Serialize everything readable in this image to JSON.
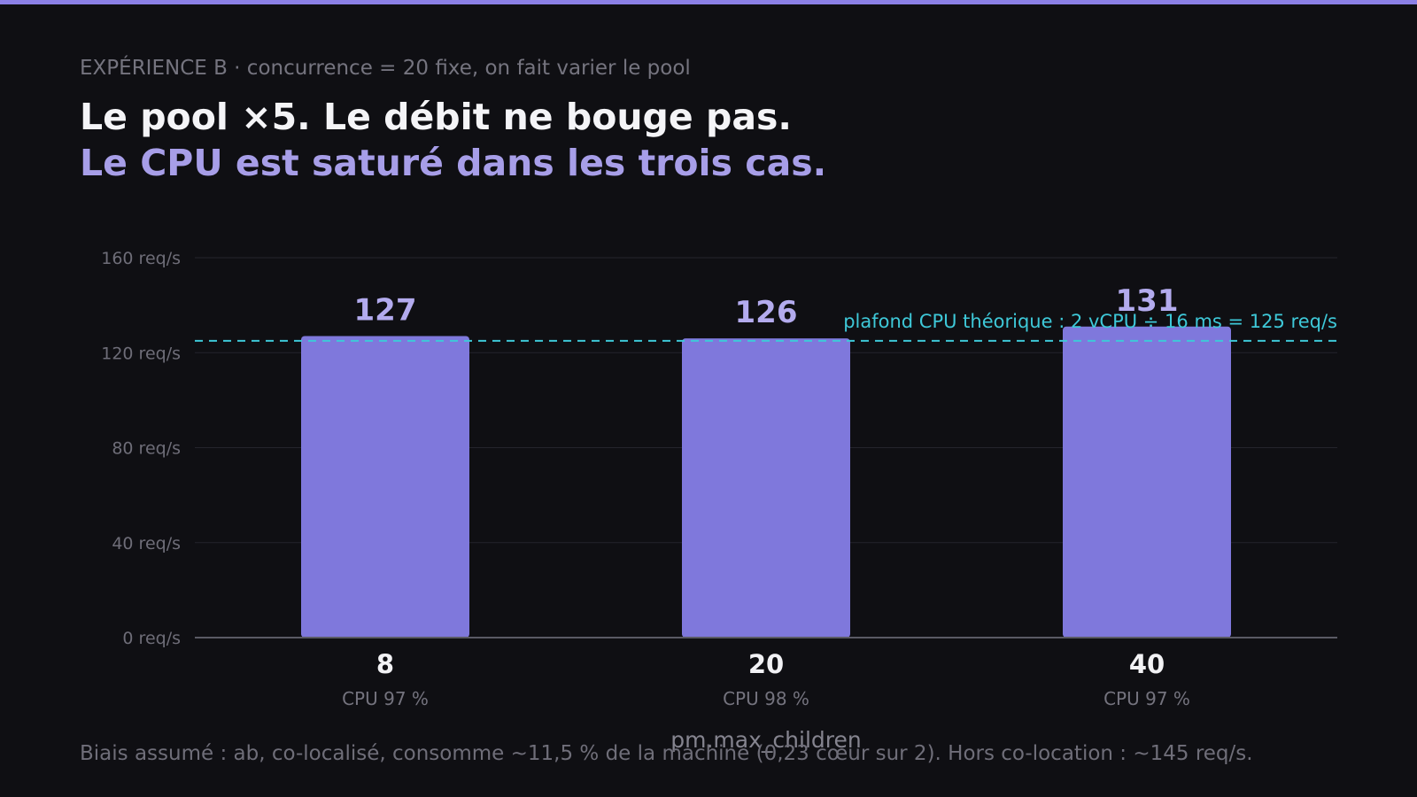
{
  "eyebrow": "EXPÉRIENCE B · concurrence = 20 fixe, on fait varier le pool",
  "title_line1": "Le pool ×5. Le débit ne bouge pas.",
  "title_line2": "Le CPU est saturé dans les trois cas.",
  "footnote": "Biais assumé : ab, co-localisé, consomme ~11,5 % de la machine (0,23 cœur sur 2). Hors co-location : ~145 req/s.",
  "colors": {
    "bar": "#7f78dc",
    "value_label": "#b3abee",
    "threshold": "#3ec8d8",
    "accent_bar": "#8b80e6"
  },
  "chart_data": {
    "type": "bar",
    "xlabel": "pm.max_children",
    "categories": [
      "8",
      "20",
      "40"
    ],
    "sublabels": [
      "CPU 97 %",
      "CPU 98 %",
      "CPU 97 %"
    ],
    "values": [
      127,
      126,
      131
    ],
    "value_labels": [
      "127",
      "126",
      "131"
    ],
    "ylim": [
      0,
      160
    ],
    "yticks": [
      0,
      40,
      80,
      120,
      160
    ],
    "ytick_labels": [
      "0 req/s",
      "40 req/s",
      "80 req/s",
      "120 req/s",
      "160 req/s"
    ],
    "threshold": {
      "value": 125,
      "label": "plafond CPU théorique : 2 vCPU ÷ 16 ms = 125 req/s"
    },
    "grid": true
  }
}
